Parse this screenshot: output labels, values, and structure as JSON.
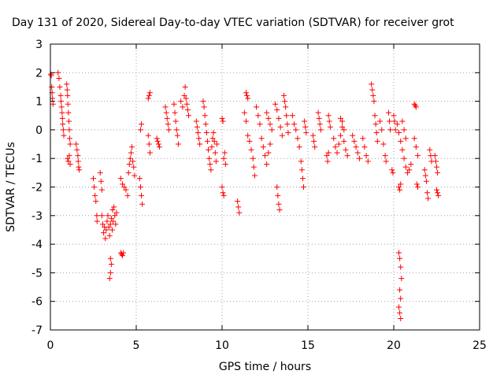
{
  "chart_data": {
    "type": "scatter",
    "title": "Day 131 of 2020, Sidereal Day-to-day VTEC variation (SDTVAR) for receiver grot",
    "xlabel": "GPS time / hours",
    "ylabel": "SDTVAR / TECUs",
    "xlim": [
      0,
      25
    ],
    "ylim": [
      -7,
      3
    ],
    "xticks": [
      0,
      5,
      10,
      15,
      20,
      25
    ],
    "yticks": [
      -7,
      -6,
      -5,
      -4,
      -3,
      -2,
      -1,
      0,
      1,
      2,
      3
    ],
    "grid": true,
    "marker": "+",
    "color": "#ff0000",
    "series": [
      {
        "name": "SDTVAR",
        "points": [
          [
            0.02,
            1.95
          ],
          [
            0.05,
            1.9
          ],
          [
            0.08,
            1.5
          ],
          [
            0.1,
            1.3
          ],
          [
            0.12,
            1.1
          ],
          [
            0.15,
            0.9
          ],
          [
            0.45,
            2.0
          ],
          [
            0.5,
            1.8
          ],
          [
            0.55,
            1.5
          ],
          [
            0.6,
            1.2
          ],
          [
            0.62,
            1.0
          ],
          [
            0.65,
            0.8
          ],
          [
            0.68,
            0.6
          ],
          [
            0.7,
            0.4
          ],
          [
            0.72,
            0.2
          ],
          [
            0.75,
            0.0
          ],
          [
            0.78,
            -0.2
          ],
          [
            0.95,
            1.6
          ],
          [
            0.98,
            1.4
          ],
          [
            1.0,
            1.2
          ],
          [
            1.02,
            0.9
          ],
          [
            1.05,
            0.6
          ],
          [
            1.08,
            0.3
          ],
          [
            1.1,
            0.0
          ],
          [
            1.12,
            -0.3
          ],
          [
            1.15,
            -0.5
          ],
          [
            1.0,
            -1.0
          ],
          [
            1.05,
            -1.1
          ],
          [
            1.1,
            -0.9
          ],
          [
            1.15,
            -1.2
          ],
          [
            1.5,
            -0.5
          ],
          [
            1.55,
            -0.7
          ],
          [
            1.6,
            -0.9
          ],
          [
            1.62,
            -1.1
          ],
          [
            1.65,
            -1.3
          ],
          [
            1.68,
            -1.4
          ],
          [
            2.5,
            -1.7
          ],
          [
            2.55,
            -2.0
          ],
          [
            2.6,
            -2.3
          ],
          [
            2.65,
            -2.5
          ],
          [
            2.7,
            -3.0
          ],
          [
            2.72,
            -3.2
          ],
          [
            2.9,
            -1.5
          ],
          [
            2.95,
            -1.8
          ],
          [
            3.0,
            -2.1
          ],
          [
            3.0,
            -3.0
          ],
          [
            3.05,
            -3.3
          ],
          [
            3.1,
            -3.6
          ],
          [
            3.15,
            -3.4
          ],
          [
            3.2,
            -3.8
          ],
          [
            3.25,
            -3.5
          ],
          [
            3.3,
            -3.2
          ],
          [
            3.35,
            -3.0
          ],
          [
            3.4,
            -3.4
          ],
          [
            3.45,
            -3.7
          ],
          [
            3.5,
            -3.3
          ],
          [
            3.55,
            -3.1
          ],
          [
            3.6,
            -3.5
          ],
          [
            3.62,
            -2.8
          ],
          [
            3.65,
            -3.2
          ],
          [
            3.7,
            -2.7
          ],
          [
            3.75,
            -3.0
          ],
          [
            3.8,
            -3.3
          ],
          [
            3.85,
            -2.9
          ],
          [
            3.5,
            -4.5
          ],
          [
            3.55,
            -4.7
          ],
          [
            3.5,
            -5.0
          ],
          [
            3.45,
            -5.2
          ],
          [
            4.1,
            -4.3
          ],
          [
            4.15,
            -4.35
          ],
          [
            4.2,
            -4.4
          ],
          [
            4.25,
            -4.3
          ],
          [
            4.1,
            -1.7
          ],
          [
            4.2,
            -1.9
          ],
          [
            4.3,
            -2.0
          ],
          [
            4.4,
            -2.1
          ],
          [
            4.5,
            -2.3
          ],
          [
            4.55,
            -1.5
          ],
          [
            4.6,
            -1.2
          ],
          [
            4.65,
            -1.0
          ],
          [
            4.7,
            -0.8
          ],
          [
            4.75,
            -0.6
          ],
          [
            4.8,
            -1.1
          ],
          [
            4.85,
            -1.3
          ],
          [
            4.9,
            -1.6
          ],
          [
            5.2,
            -1.7
          ],
          [
            5.25,
            -2.0
          ],
          [
            5.3,
            -2.3
          ],
          [
            5.35,
            -2.6
          ],
          [
            5.25,
            0.0
          ],
          [
            5.3,
            0.2
          ],
          [
            5.7,
            1.1
          ],
          [
            5.75,
            1.2
          ],
          [
            5.8,
            1.3
          ],
          [
            5.7,
            -0.2
          ],
          [
            5.75,
            -0.5
          ],
          [
            5.8,
            -0.8
          ],
          [
            6.2,
            -0.3
          ],
          [
            6.25,
            -0.4
          ],
          [
            6.3,
            -0.5
          ],
          [
            6.35,
            -0.6
          ],
          [
            6.7,
            0.8
          ],
          [
            6.75,
            0.6
          ],
          [
            6.8,
            0.4
          ],
          [
            6.85,
            0.2
          ],
          [
            6.9,
            0.0
          ],
          [
            7.2,
            0.9
          ],
          [
            7.25,
            0.6
          ],
          [
            7.3,
            0.3
          ],
          [
            7.35,
            0.0
          ],
          [
            7.4,
            -0.2
          ],
          [
            7.45,
            -0.5
          ],
          [
            7.6,
            1.0
          ],
          [
            7.7,
            0.8
          ],
          [
            7.8,
            1.2
          ],
          [
            7.85,
            1.5
          ],
          [
            7.9,
            1.1
          ],
          [
            7.95,
            0.9
          ],
          [
            8.0,
            0.7
          ],
          [
            8.05,
            0.5
          ],
          [
            8.5,
            0.3
          ],
          [
            8.55,
            0.1
          ],
          [
            8.6,
            -0.1
          ],
          [
            8.65,
            -0.3
          ],
          [
            8.7,
            -0.5
          ],
          [
            8.9,
            1.0
          ],
          [
            8.95,
            0.8
          ],
          [
            9.0,
            0.5
          ],
          [
            9.05,
            0.2
          ],
          [
            9.1,
            -0.1
          ],
          [
            9.15,
            -0.4
          ],
          [
            9.2,
            -0.7
          ],
          [
            9.25,
            -1.0
          ],
          [
            9.3,
            -1.2
          ],
          [
            9.35,
            -1.4
          ],
          [
            9.4,
            -0.6
          ],
          [
            9.45,
            -0.3
          ],
          [
            9.5,
            -0.1
          ],
          [
            9.55,
            -0.4
          ],
          [
            9.6,
            -0.8
          ],
          [
            9.65,
            -1.1
          ],
          [
            9.7,
            -0.5
          ],
          [
            10.0,
            0.4
          ],
          [
            10.05,
            0.3
          ],
          [
            10.1,
            -1.0
          ],
          [
            10.15,
            -0.8
          ],
          [
            10.2,
            -1.2
          ],
          [
            10.0,
            -2.0
          ],
          [
            10.05,
            -2.2
          ],
          [
            10.1,
            -2.3
          ],
          [
            10.9,
            -2.5
          ],
          [
            10.95,
            -2.7
          ],
          [
            11.0,
            -2.9
          ],
          [
            11.4,
            1.3
          ],
          [
            11.45,
            1.2
          ],
          [
            11.5,
            1.1
          ],
          [
            11.3,
            0.6
          ],
          [
            11.4,
            0.3
          ],
          [
            11.5,
            -0.2
          ],
          [
            11.6,
            -0.4
          ],
          [
            11.7,
            -0.7
          ],
          [
            11.8,
            -1.0
          ],
          [
            11.85,
            -1.3
          ],
          [
            11.9,
            -1.6
          ],
          [
            12.0,
            0.8
          ],
          [
            12.1,
            0.5
          ],
          [
            12.2,
            0.2
          ],
          [
            12.3,
            -0.3
          ],
          [
            12.4,
            -0.6
          ],
          [
            12.5,
            -0.9
          ],
          [
            12.6,
            -1.2
          ],
          [
            12.7,
            -0.8
          ],
          [
            12.8,
            -0.5
          ],
          [
            12.6,
            0.6
          ],
          [
            12.7,
            0.4
          ],
          [
            12.8,
            0.2
          ],
          [
            12.9,
            0.0
          ],
          [
            13.2,
            -2.0
          ],
          [
            13.25,
            -2.3
          ],
          [
            13.3,
            -2.6
          ],
          [
            13.35,
            -2.8
          ],
          [
            13.1,
            0.9
          ],
          [
            13.2,
            0.7
          ],
          [
            13.3,
            0.4
          ],
          [
            13.4,
            0.1
          ],
          [
            13.5,
            -0.2
          ],
          [
            13.6,
            1.2
          ],
          [
            13.65,
            1.0
          ],
          [
            13.7,
            0.8
          ],
          [
            13.75,
            0.5
          ],
          [
            13.8,
            0.2
          ],
          [
            13.85,
            -0.1
          ],
          [
            14.1,
            0.5
          ],
          [
            14.2,
            0.2
          ],
          [
            14.3,
            0.0
          ],
          [
            14.4,
            -0.3
          ],
          [
            14.5,
            -0.6
          ],
          [
            14.6,
            -1.1
          ],
          [
            14.65,
            -1.4
          ],
          [
            14.7,
            -1.7
          ],
          [
            14.75,
            -2.0
          ],
          [
            14.8,
            0.3
          ],
          [
            14.85,
            0.1
          ],
          [
            14.9,
            -0.1
          ],
          [
            15.3,
            -0.2
          ],
          [
            15.35,
            -0.4
          ],
          [
            15.4,
            -0.6
          ],
          [
            15.6,
            0.6
          ],
          [
            15.65,
            0.4
          ],
          [
            15.7,
            0.2
          ],
          [
            15.75,
            0.0
          ],
          [
            16.1,
            -0.9
          ],
          [
            16.15,
            -1.1
          ],
          [
            16.2,
            -0.8
          ],
          [
            16.2,
            0.5
          ],
          [
            16.25,
            0.3
          ],
          [
            16.3,
            0.1
          ],
          [
            16.5,
            -0.3
          ],
          [
            16.6,
            -0.6
          ],
          [
            16.7,
            -0.8
          ],
          [
            16.8,
            -0.5
          ],
          [
            16.9,
            -0.2
          ],
          [
            17.0,
            0.1
          ],
          [
            17.1,
            -0.4
          ],
          [
            17.2,
            -0.7
          ],
          [
            17.3,
            -0.9
          ],
          [
            16.9,
            0.4
          ],
          [
            17.0,
            0.3
          ],
          [
            17.1,
            0.0
          ],
          [
            17.6,
            -0.2
          ],
          [
            17.7,
            -0.4
          ],
          [
            17.8,
            -0.6
          ],
          [
            17.9,
            -0.8
          ],
          [
            18.0,
            -1.0
          ],
          [
            18.2,
            -0.3
          ],
          [
            18.3,
            -0.6
          ],
          [
            18.4,
            -0.9
          ],
          [
            18.5,
            -1.1
          ],
          [
            18.7,
            1.6
          ],
          [
            18.75,
            1.4
          ],
          [
            18.8,
            1.2
          ],
          [
            18.85,
            1.0
          ],
          [
            18.9,
            0.5
          ],
          [
            18.95,
            0.2
          ],
          [
            19.0,
            -0.1
          ],
          [
            19.05,
            -0.4
          ],
          [
            19.2,
            0.3
          ],
          [
            19.3,
            0.0
          ],
          [
            19.4,
            -0.5
          ],
          [
            19.5,
            -0.9
          ],
          [
            19.55,
            -1.1
          ],
          [
            19.7,
            0.6
          ],
          [
            19.75,
            0.3
          ],
          [
            19.8,
            0.0
          ],
          [
            19.9,
            -1.4
          ],
          [
            19.95,
            -1.5
          ],
          [
            20.0,
            0.5
          ],
          [
            20.05,
            0.3
          ],
          [
            20.1,
            0.0
          ],
          [
            20.3,
            -2.0
          ],
          [
            20.35,
            -2.1
          ],
          [
            20.4,
            -1.9
          ],
          [
            20.2,
            0.2
          ],
          [
            20.3,
            -0.1
          ],
          [
            20.4,
            -0.4
          ],
          [
            20.5,
            -0.7
          ],
          [
            20.6,
            -1.0
          ],
          [
            20.7,
            -1.3
          ],
          [
            20.8,
            -1.5
          ],
          [
            20.9,
            -1.4
          ],
          [
            21.0,
            -1.2
          ],
          [
            20.5,
            0.3
          ],
          [
            20.6,
            0.0
          ],
          [
            20.7,
            -0.3
          ],
          [
            20.3,
            -4.3
          ],
          [
            20.35,
            -4.5
          ],
          [
            20.4,
            -4.8
          ],
          [
            20.45,
            -5.2
          ],
          [
            20.35,
            -5.6
          ],
          [
            20.4,
            -5.9
          ],
          [
            20.3,
            -6.2
          ],
          [
            20.35,
            -6.4
          ],
          [
            20.4,
            -6.6
          ],
          [
            21.2,
            0.9
          ],
          [
            21.25,
            0.85
          ],
          [
            21.3,
            0.8
          ],
          [
            21.2,
            -0.3
          ],
          [
            21.3,
            -0.6
          ],
          [
            21.4,
            -0.9
          ],
          [
            21.35,
            -1.9
          ],
          [
            21.4,
            -2.0
          ],
          [
            21.8,
            -1.4
          ],
          [
            21.85,
            -1.6
          ],
          [
            21.9,
            -1.8
          ],
          [
            21.95,
            -2.2
          ],
          [
            22.0,
            -2.4
          ],
          [
            22.1,
            -0.7
          ],
          [
            22.15,
            -0.9
          ],
          [
            22.2,
            -1.1
          ],
          [
            22.4,
            -0.9
          ],
          [
            22.45,
            -1.1
          ],
          [
            22.5,
            -1.3
          ],
          [
            22.55,
            -1.5
          ],
          [
            22.5,
            -2.1
          ],
          [
            22.55,
            -2.2
          ],
          [
            22.6,
            -2.3
          ]
        ]
      }
    ]
  }
}
